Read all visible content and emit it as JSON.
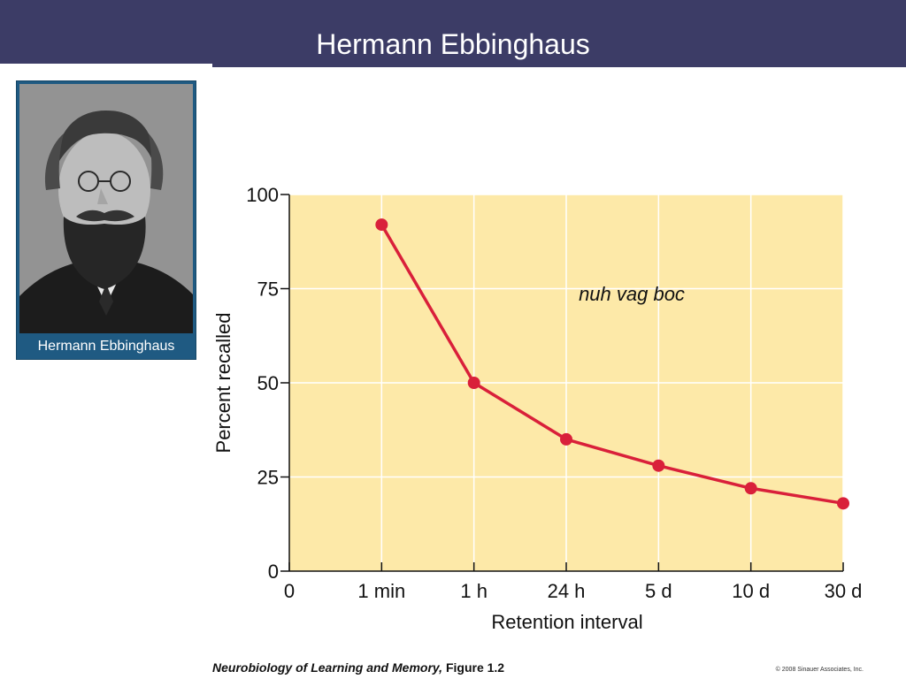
{
  "slide": {
    "title": "Hermann Ebbinghaus",
    "header_color": "#3c3c66"
  },
  "portrait": {
    "caption": "Hermann Ebbinghaus",
    "frame_color": "#1f5a82"
  },
  "chart_data": {
    "type": "line",
    "categories": [
      "0",
      "1 min",
      "1 h",
      "24 h",
      "5 d",
      "10 d",
      "30 d"
    ],
    "series": [
      {
        "x": [
          "1 min",
          "1 h",
          "24 h",
          "5 d",
          "10 d",
          "30 d"
        ],
        "values": [
          92,
          50,
          35,
          28,
          22,
          18
        ]
      }
    ],
    "xlabel": "Retention interval",
    "ylabel": "Percent recalled",
    "ylim": [
      0,
      100
    ],
    "yticks": [
      0,
      25,
      50,
      75,
      100
    ],
    "annotation": "nuh vag boc",
    "grid": true,
    "background_color": "#fde9a8",
    "line_color": "#d9203a"
  },
  "footer": {
    "book": "Neurobiology of Learning and Memory,",
    "figure": "Figure 1.2",
    "copyright": "© 2008 Sinauer Associates, Inc."
  }
}
